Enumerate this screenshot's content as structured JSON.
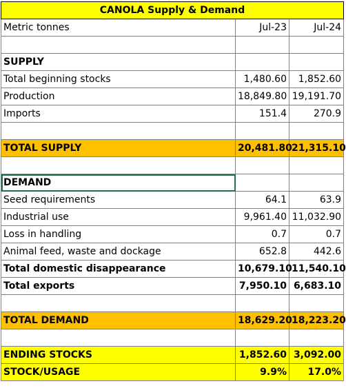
{
  "title": "CANOLA Supply & Demand",
  "header": {
    "label": "Metric tonnes",
    "columns": [
      "Jul-23",
      "Jul-24"
    ]
  },
  "rows": [
    [
      "SUPPLY"
    ],
    [
      "Total beginning stocks",
      "1,480.60",
      "1,852.60"
    ],
    [
      "Production",
      "18,849.80",
      "19,191.70"
    ],
    [
      "Imports",
      "151.4",
      "270.9"
    ],
    [
      "TOTAL SUPPLY",
      "20,481.80",
      "21,315.10"
    ],
    [
      "DEMAND"
    ],
    [
      "Seed requirements",
      "64.1",
      "63.9"
    ],
    [
      "Industrial use",
      "9,961.40",
      "11,032.90"
    ],
    [
      "Loss in handling",
      "0.7",
      "0.7"
    ],
    [
      "Animal feed, waste and dockage",
      "652.8",
      "442.6"
    ],
    [
      "Total domestic disappearance",
      "10,679.10",
      "11,540.10"
    ],
    [
      "Total exports",
      "7,950.10",
      "6,683.10"
    ],
    [
      "TOTAL DEMAND",
      "18,629.20",
      "18,223.20"
    ],
    [
      "ENDING STOCKS",
      "1,852.60",
      "3,092.00"
    ],
    [
      "STOCK/USAGE",
      "9.9%",
      "17.0%"
    ]
  ]
}
